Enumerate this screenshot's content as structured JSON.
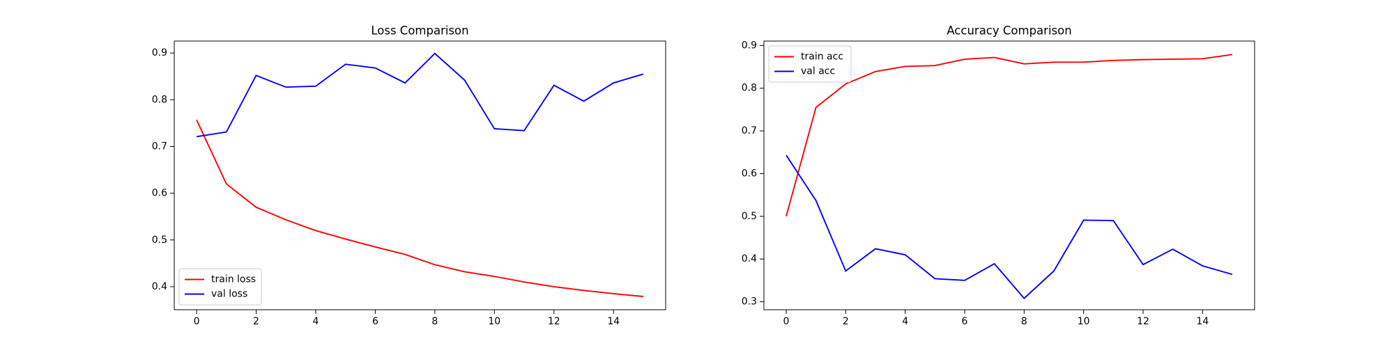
{
  "chart_data": [
    {
      "type": "line",
      "title": "Loss Comparison",
      "x": [
        0,
        1,
        2,
        3,
        4,
        5,
        6,
        7,
        8,
        9,
        10,
        11,
        12,
        13,
        14,
        15
      ],
      "series": [
        {
          "name": "train loss",
          "color": "#ff0000",
          "values": [
            0.757,
            0.62,
            0.57,
            0.543,
            0.52,
            0.502,
            0.485,
            0.469,
            0.447,
            0.432,
            0.422,
            0.41,
            0.4,
            0.392,
            0.385,
            0.379
          ]
        },
        {
          "name": "val loss",
          "color": "#0000ff",
          "values": [
            0.721,
            0.731,
            0.852,
            0.827,
            0.829,
            0.876,
            0.868,
            0.836,
            0.899,
            0.842,
            0.738,
            0.734,
            0.831,
            0.797,
            0.836,
            0.855
          ]
        }
      ],
      "xlim": [
        -0.75,
        15.75
      ],
      "xticks": [
        0,
        2,
        4,
        6,
        8,
        10,
        12,
        14
      ],
      "ylim": [
        0.3507,
        0.9256
      ],
      "yticks": [
        0.4,
        0.5,
        0.6,
        0.7,
        0.8,
        0.9
      ],
      "legend": "lower-left"
    },
    {
      "type": "line",
      "title": "Accuracy Comparison",
      "x": [
        0,
        1,
        2,
        3,
        4,
        5,
        6,
        7,
        8,
        9,
        10,
        11,
        12,
        13,
        14,
        15
      ],
      "series": [
        {
          "name": "train acc",
          "color": "#ff0000",
          "values": [
            0.5,
            0.755,
            0.81,
            0.839,
            0.851,
            0.853,
            0.868,
            0.872,
            0.857,
            0.861,
            0.861,
            0.865,
            0.867,
            0.868,
            0.869,
            0.879
          ]
        },
        {
          "name": "val acc",
          "color": "#0000ff",
          "values": [
            0.643,
            0.537,
            0.372,
            0.424,
            0.41,
            0.354,
            0.35,
            0.389,
            0.308,
            0.372,
            0.491,
            0.49,
            0.387,
            0.423,
            0.384,
            0.364
          ]
        }
      ],
      "xlim": [
        -0.75,
        15.75
      ],
      "xticks": [
        0,
        2,
        4,
        6,
        8,
        10,
        12,
        14
      ],
      "ylim": [
        0.2813,
        0.9104
      ],
      "yticks": [
        0.3,
        0.4,
        0.5,
        0.6,
        0.7,
        0.8,
        0.9
      ],
      "legend": "upper-left"
    }
  ]
}
